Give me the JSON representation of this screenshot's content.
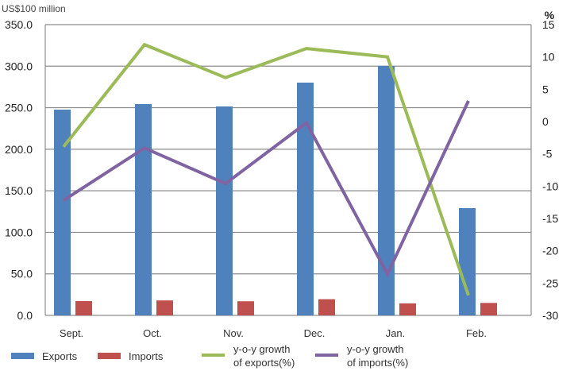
{
  "chart_data": {
    "type": "bar",
    "title": "",
    "left_axis_unit": "US$100 million",
    "right_axis_unit": "%",
    "categories": [
      "Sept.",
      "Oct.",
      "Nov.",
      "Dec.",
      "Jan.",
      "Feb."
    ],
    "ylim_left": [
      0,
      350
    ],
    "ylim_right": [
      -30,
      15
    ],
    "left_ticks": [
      "0.0",
      "50.0",
      "100.0",
      "150.0",
      "200.0",
      "250.0",
      "300.0",
      "350.0"
    ],
    "right_ticks": [
      "-30",
      "-25",
      "-20",
      "-15",
      "-10",
      "-5",
      "0",
      "5",
      "10",
      "15"
    ],
    "grid": true,
    "legend_position": "bottom",
    "series": [
      {
        "name": "Exports",
        "type": "bar",
        "axis": "left",
        "color": "#4f81bd",
        "values": [
          247.7,
          254.4,
          251.5,
          280.2,
          300.3,
          129.1
        ]
      },
      {
        "name": "Imports",
        "type": "bar",
        "axis": "left",
        "color": "#c0504d",
        "values": [
          17.2,
          18.0,
          17.0,
          19.5,
          14.5,
          15.0
        ]
      },
      {
        "name": "y-o-y growth of exports(%)",
        "type": "line",
        "axis": "right",
        "color": "#9bbb59",
        "values": [
          -3.9,
          11.9,
          6.8,
          11.3,
          10.0,
          -26.9
        ]
      },
      {
        "name": "y-o-y growth of imports(%)",
        "type": "line",
        "axis": "right",
        "color": "#8064a2",
        "values": [
          -12.2,
          -4.1,
          -9.6,
          -0.2,
          -23.6,
          3.2
        ]
      }
    ],
    "legend": [
      {
        "label_lines": [
          "Exports"
        ],
        "kind": "bar",
        "color": "#4f81bd"
      },
      {
        "label_lines": [
          "Imports"
        ],
        "kind": "bar",
        "color": "#c0504d"
      },
      {
        "label_lines": [
          "y-o-y growth",
          "of exports(%)"
        ],
        "kind": "line",
        "color": "#9bbb59"
      },
      {
        "label_lines": [
          "y-o-y growth",
          "of imports(%)"
        ],
        "kind": "line",
        "color": "#8064a2"
      }
    ]
  }
}
